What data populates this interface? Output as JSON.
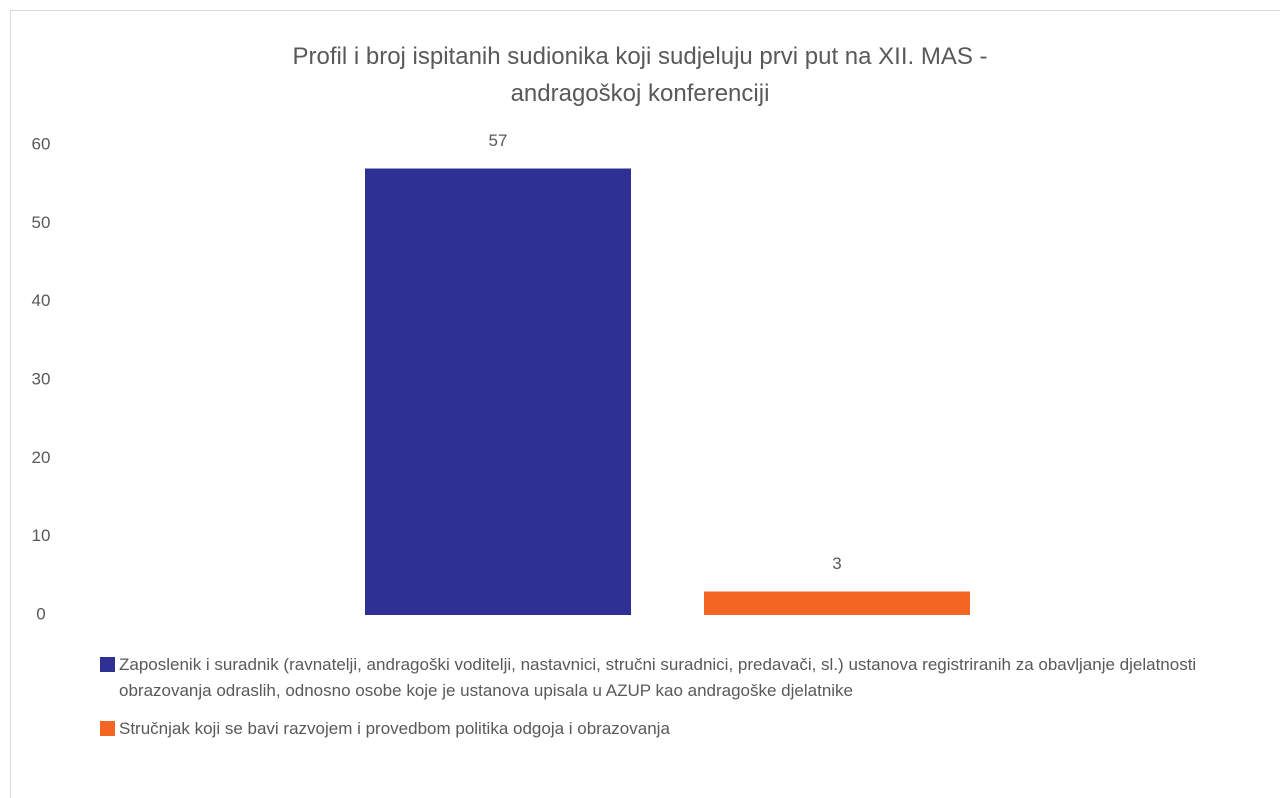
{
  "chart_data": {
    "type": "bar",
    "title": "Profil i broj ispitanih sudionika koji sudjeluju prvi put na XII. MAS - andragoškoj konferenciji",
    "categories": [
      null
    ],
    "series": [
      {
        "name": "Zaposlenik i suradnik (ravnatelji, andragoški voditelji, nastavnici, stručni suradnici, predavači, sl.) ustanova registriranih za obavljanje djelatnosti obrazovanja odraslih, odnosno osobe koje je ustanova upisala u AZUP kao andragoške djelatnike",
        "color": "#2e3192",
        "values": [
          57
        ]
      },
      {
        "name": "Stručnjak koji se bavi razvojem i provedbom politika odgoja i obrazovanja",
        "color": "#f26522",
        "values": [
          3
        ]
      }
    ],
    "ylim": [
      0,
      60
    ],
    "yticks": [
      0,
      10,
      20,
      30,
      40,
      50,
      60
    ],
    "grid": false,
    "legend": "bottom"
  }
}
